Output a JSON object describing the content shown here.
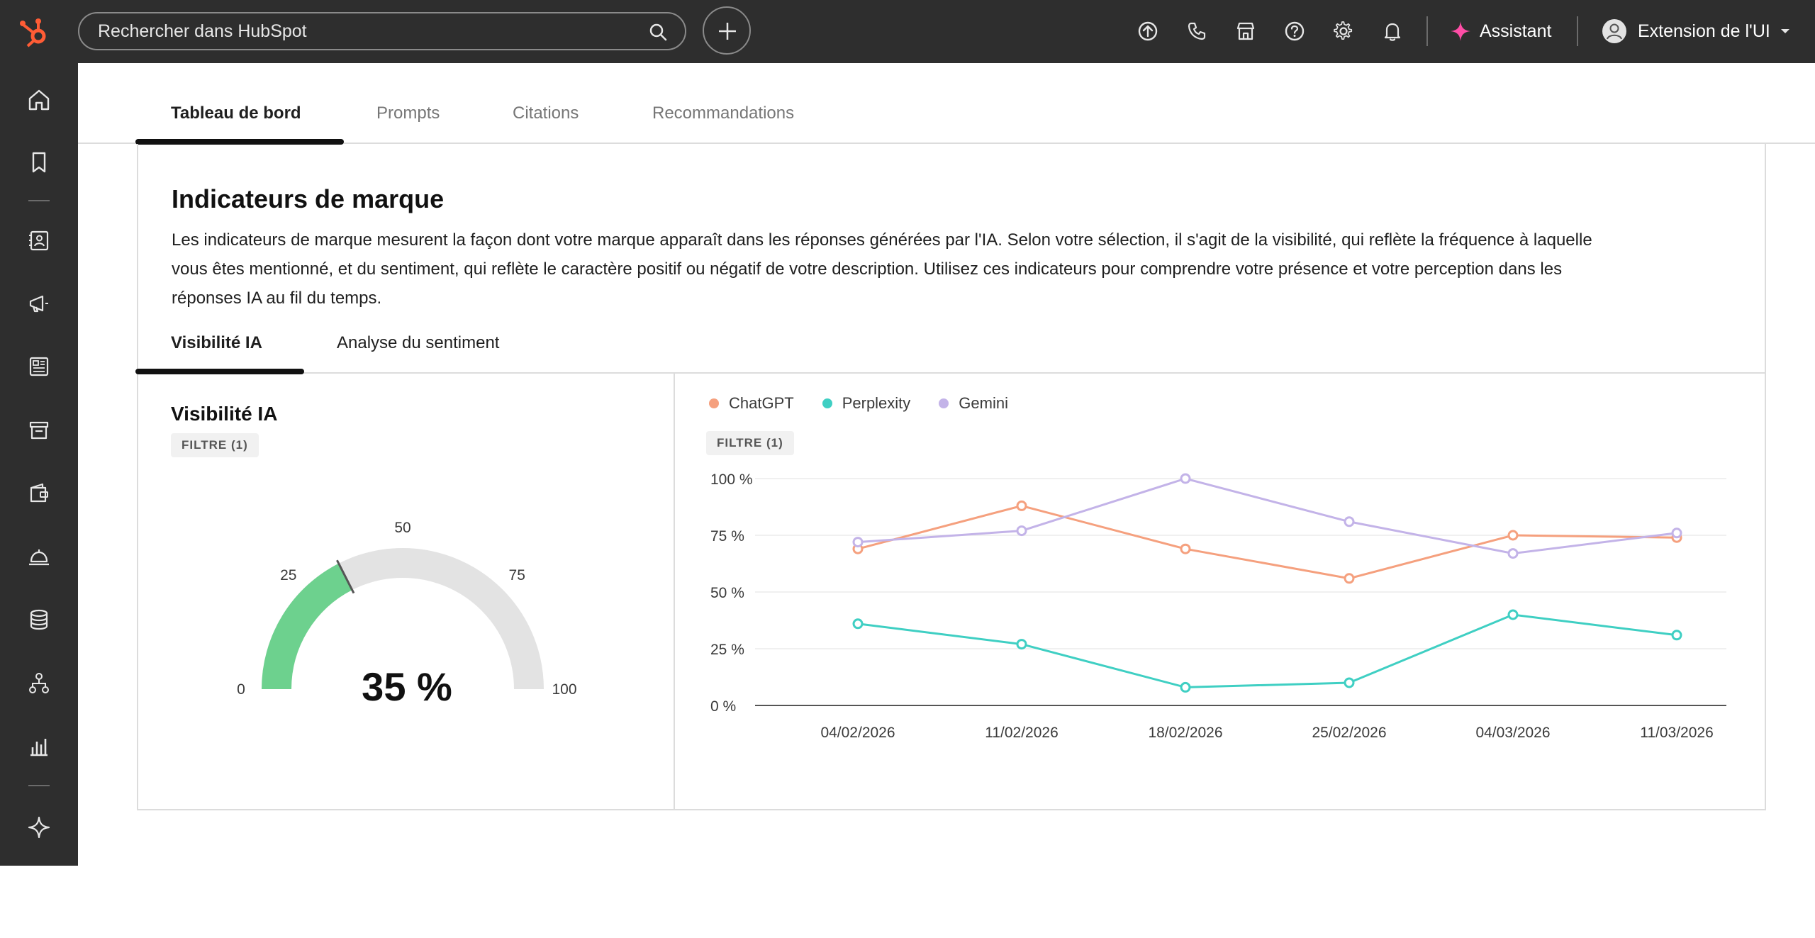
{
  "topbar": {
    "search_placeholder": "Rechercher dans HubSpot",
    "assistant_label": "Assistant",
    "account_label": "Extension de l'UI",
    "brand_color": "#ff5c35",
    "assistant_color": "#ff4da6"
  },
  "tabs": [
    {
      "label": "Tableau de bord",
      "active": true
    },
    {
      "label": "Prompts",
      "active": false
    },
    {
      "label": "Citations",
      "active": false
    },
    {
      "label": "Recommandations",
      "active": false
    }
  ],
  "brand_card": {
    "title": "Indicateurs de marque",
    "description": "Les indicateurs de marque mesurent la façon dont votre marque apparaît dans les réponses générées par l'IA. Selon votre sélection, il s'agit de la visibilité, qui reflète la fréquence à laquelle vous êtes mentionné, et du sentiment, qui reflète le caractère positif ou négatif de votre description. Utilisez ces indicateurs pour comprendre votre présence et votre perception dans les réponses IA au fil du temps."
  },
  "subtabs": [
    {
      "label": "Visibilité IA",
      "active": true
    },
    {
      "label": "Analyse du sentiment",
      "active": false
    }
  ],
  "visibility_panel": {
    "title": "Visibilité IA",
    "filter_label": "FILTRE (1)",
    "gauge": {
      "value": 35,
      "display": "35 %",
      "min": 0,
      "max": 100,
      "tick_labels": [
        "0",
        "25",
        "50",
        "75",
        "100"
      ],
      "fill_color": "#6dd18e",
      "track_color": "#e3e3e3"
    }
  },
  "trend_panel": {
    "filter_label": "FILTRE (1)"
  },
  "chart_data": {
    "type": "line",
    "x": [
      "04/02/2026",
      "11/02/2026",
      "18/02/2026",
      "25/02/2026",
      "04/03/2026",
      "11/03/2026"
    ],
    "y_ticks": [
      "0 %",
      "25 %",
      "50 %",
      "75 %",
      "100 %"
    ],
    "ylim": [
      0,
      100
    ],
    "grid": true,
    "legend_position": "top-left",
    "series": [
      {
        "name": "ChatGPT",
        "color": "#f5a07e",
        "values": [
          69,
          88,
          69,
          56,
          75,
          74
        ]
      },
      {
        "name": "Perplexity",
        "color": "#3fcfc3",
        "values": [
          36,
          27,
          8,
          10,
          40,
          31
        ]
      },
      {
        "name": "Gemini",
        "color": "#c3b3e8",
        "values": [
          72,
          77,
          100,
          81,
          67,
          76
        ]
      }
    ]
  }
}
